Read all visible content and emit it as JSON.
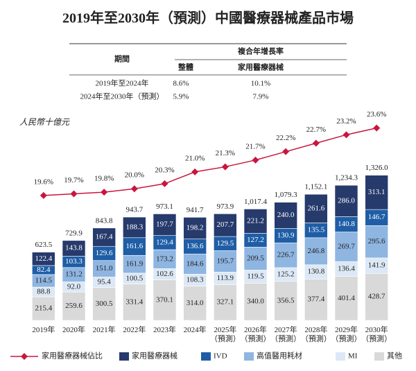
{
  "chart_data": {
    "type": "bar",
    "stacked": true,
    "title": "2019年至2030年（預測）中國醫療器械產品市場",
    "y_label": "人民幣十億元",
    "categories": [
      "2019年",
      "2020年",
      "2021年",
      "2022年",
      "2023年",
      "2024年",
      "2025年\n（預測）",
      "2026年\n（預測）",
      "2027年\n（預測）",
      "2028年\n（預測）",
      "2029年\n（預測）",
      "2030年\n（預測）"
    ],
    "ylim": [
      0,
      1850
    ],
    "y2lim": [
      12.2,
      24.2
    ],
    "series": [
      {
        "name": "家用醫療器械佔比",
        "type": "line",
        "axis": "y2",
        "color": "#c8163c",
        "values": [
          19.6,
          19.7,
          19.8,
          20.0,
          20.3,
          21.0,
          21.3,
          21.7,
          22.2,
          22.7,
          23.2,
          23.6
        ],
        "value_labels": [
          "19.6%",
          "19.7%",
          "19.8%",
          "20.0%",
          "20.3%",
          "21.0%",
          "21.3%",
          "21.7%",
          "22.2%",
          "22.7%",
          "23.2%",
          "23.6%"
        ]
      },
      {
        "name": "家用醫療器械",
        "color": "#263a6c",
        "label_color": "#ffffff",
        "values": [
          122.4,
          143.8,
          167.4,
          188.3,
          197.7,
          198.2,
          207.7,
          221.2,
          240.0,
          261.6,
          286.0,
          313.1
        ],
        "value_labels": [
          "122.4",
          "143.8",
          "167.4",
          "188.3",
          "197.7",
          "198.2",
          "207.7",
          "221.2",
          "240.0",
          "261.6",
          "286.0",
          "313.1"
        ]
      },
      {
        "name": "IVD",
        "color": "#1f5ea6",
        "label_color": "#ffffff",
        "values": [
          82.4,
          103.3,
          129.6,
          161.6,
          129.4,
          136.6,
          129.5,
          127.2,
          130.9,
          135.5,
          140.8,
          146.7
        ],
        "value_labels": [
          "82.4",
          "103.3",
          "129.6",
          "161.6",
          "129.4",
          "136.6",
          "129.5",
          "127.2",
          "130.9",
          "135.5",
          "140.8",
          "146.7"
        ]
      },
      {
        "name": "高值醫用耗材",
        "color": "#8fb5e1",
        "label_color": "#222222",
        "values": [
          114.5,
          131.2,
          151.0,
          161.9,
          173.2,
          184.6,
          195.7,
          209.5,
          226.7,
          246.8,
          269.7,
          295.6
        ],
        "value_labels": [
          "114.5",
          "131.2",
          "151.0",
          "161.9",
          "173.2",
          "184.6",
          "195.7",
          "209.5",
          "226.7",
          "246.8",
          "269.7",
          "295.6"
        ]
      },
      {
        "name": "MI",
        "color": "#dce8f5",
        "label_color": "#222222",
        "values": [
          88.8,
          92.0,
          95.4,
          100.5,
          102.6,
          108.3,
          113.9,
          119.5,
          125.2,
          130.8,
          136.4,
          141.9
        ],
        "value_labels": [
          "88.8",
          "92.0",
          "95.4",
          "100.5",
          "102.6",
          "108.3",
          "113.9",
          "119.5",
          "125.2",
          "130.8",
          "136.4",
          "141.9"
        ]
      },
      {
        "name": "其他",
        "color": "#d9d9d9",
        "label_color": "#222222",
        "values": [
          215.4,
          259.6,
          300.5,
          331.4,
          370.1,
          314.0,
          327.1,
          340.0,
          356.5,
          377.4,
          401.4,
          428.7
        ],
        "value_labels": [
          "215.4",
          "259.6",
          "300.5",
          "331.4",
          "370.1",
          "314.0",
          "327.1",
          "340.0",
          "356.5",
          "377.4",
          "401.4",
          "428.7"
        ]
      }
    ],
    "totals": [
      623.5,
      729.9,
      843.8,
      943.7,
      973.1,
      941.7,
      973.9,
      1017.4,
      1079.3,
      1152.1,
      1234.3,
      1326.0
    ],
    "total_labels": [
      "623.5",
      "729.9",
      "843.8",
      "943.7",
      "973.1",
      "941.7",
      "973.9",
      "1,017.4",
      "1,079.3",
      "1,152.1",
      "1,234.3",
      "1,326.0"
    ],
    "legend": "bottom"
  },
  "table": {
    "period_header": "期間",
    "group_header": "複合年增長率",
    "columns": [
      "整體",
      "家用醫療器械"
    ],
    "rows": [
      [
        "2019年至2024年",
        "8.6%",
        "10.1%"
      ],
      [
        "2024年至2030年（預測）",
        "5.9%",
        "7.9%"
      ]
    ]
  }
}
